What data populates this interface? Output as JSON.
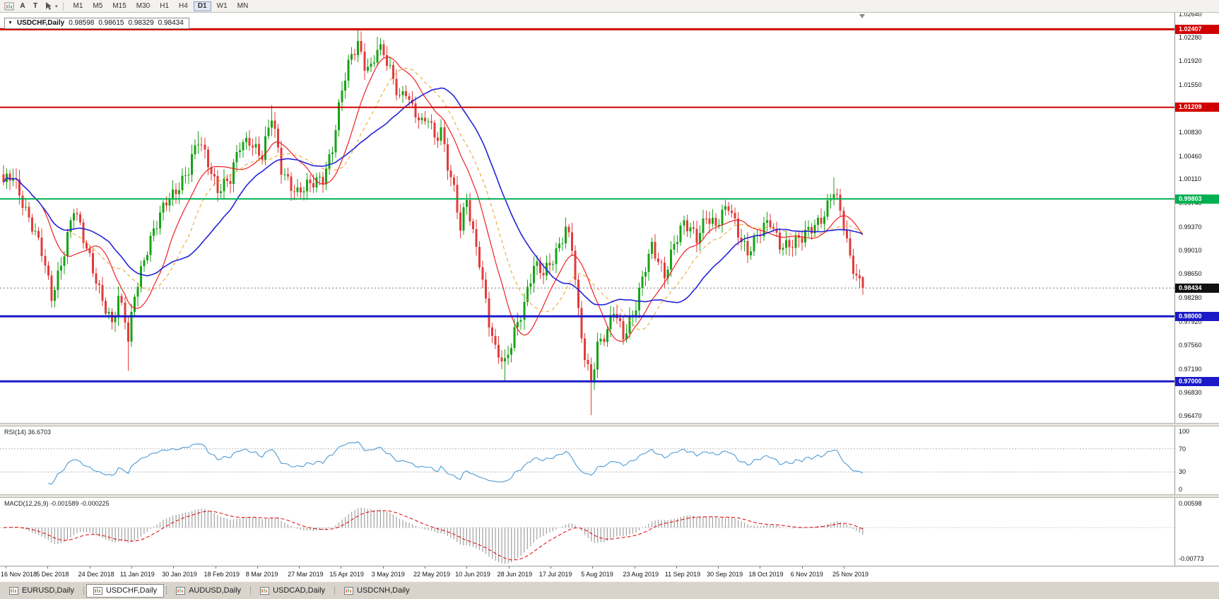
{
  "toolbar": {
    "tool_a": "A",
    "tool_t": "T",
    "timeframes": [
      {
        "label": "M1",
        "active": false
      },
      {
        "label": "M5",
        "active": false
      },
      {
        "label": "M15",
        "active": false
      },
      {
        "label": "M30",
        "active": false
      },
      {
        "label": "H1",
        "active": false
      },
      {
        "label": "H4",
        "active": false
      },
      {
        "label": "D1",
        "active": true
      },
      {
        "label": "W1",
        "active": false
      },
      {
        "label": "MN",
        "active": false
      }
    ]
  },
  "chart": {
    "title": {
      "symbol": "USDCHF,Daily",
      "open": "0.98598",
      "high": "0.98615",
      "low": "0.98329",
      "close": "0.98434"
    }
  },
  "chart_data": {
    "type": "candlestick",
    "symbol": "USDCHF",
    "period": "Daily",
    "num_candles": 270,
    "last_candle": {
      "open": 0.98598,
      "high": 0.98615,
      "low": 0.98329,
      "close": 0.98434
    },
    "price_axis_labels": [
      "1.02640",
      "1.02280",
      "1.01920",
      "1.01550",
      "1.01190",
      "1.00830",
      "1.00460",
      "1.00110",
      "0.99740",
      "0.99370",
      "0.99010",
      "0.98650",
      "0.98280",
      "0.97920",
      "0.97560",
      "0.97190",
      "0.96830",
      "0.96470"
    ],
    "price_axis_range": [
      0.9647,
      1.0264
    ],
    "x_date_labels": [
      "16 Nov 2018",
      "5 Dec 2018",
      "24 Dec 2018",
      "11 Jan 2019",
      "30 Jan 2019",
      "18 Feb 2019",
      "8 Mar 2019",
      "27 Mar 2019",
      "15 Apr 2019",
      "3 May 2019",
      "22 May 2019",
      "10 Jun 2019",
      "28 Jun 2019",
      "17 Jul 2019",
      "5 Aug 2019",
      "23 Aug 2019",
      "11 Sep 2019",
      "30 Sep 2019",
      "18 Oct 2019",
      "6 Nov 2019",
      "25 Nov 2019"
    ],
    "anchors": [
      [
        0,
        1.0
      ],
      [
        3,
        1.0015
      ],
      [
        6,
        0.998
      ],
      [
        9,
        0.994
      ],
      [
        12,
        0.9895
      ],
      [
        15,
        0.9828
      ],
      [
        18,
        0.9885
      ],
      [
        20,
        0.9926
      ],
      [
        22,
        0.9965
      ],
      [
        25,
        0.9915
      ],
      [
        29,
        0.986
      ],
      [
        32,
        0.9815
      ],
      [
        34,
        0.9785
      ],
      [
        36,
        0.9822
      ],
      [
        38,
        0.9795
      ],
      [
        39,
        0.9762
      ],
      [
        41,
        0.984
      ],
      [
        44,
        0.989
      ],
      [
        48,
        0.9938
      ],
      [
        51,
        0.9978
      ],
      [
        54,
        0.9998
      ],
      [
        58,
        1.0022
      ],
      [
        61,
        1.0068
      ],
      [
        64,
        1.004
      ],
      [
        67,
        0.9998
      ],
      [
        71,
        1.0006
      ],
      [
        74,
        1.0062
      ],
      [
        77,
        1.0075
      ],
      [
        81,
        1.0045
      ],
      [
        84,
        1.0103
      ],
      [
        87,
        1.0028
      ],
      [
        90,
        1.0005
      ],
      [
        92,
        0.999
      ],
      [
        96,
        0.9998
      ],
      [
        100,
        1.0016
      ],
      [
        103,
        1.0062
      ],
      [
        106,
        1.0145
      ],
      [
        109,
        1.0198
      ],
      [
        111,
        1.022
      ],
      [
        113,
        1.0192
      ],
      [
        115,
        1.0183
      ],
      [
        117,
        1.021
      ],
      [
        119,
        1.0198
      ],
      [
        121,
        1.0175
      ],
      [
        124,
        1.014
      ],
      [
        126,
        1.0152
      ],
      [
        128,
        1.0118
      ],
      [
        131,
        1.009
      ],
      [
        133,
        1.0104
      ],
      [
        135,
        1.0076
      ],
      [
        137,
        1.0092
      ],
      [
        139,
        1.0035
      ],
      [
        141,
        0.999
      ],
      [
        143,
        0.993
      ],
      [
        145,
        0.9978
      ],
      [
        147,
        0.993
      ],
      [
        149,
        0.989
      ],
      [
        152,
        0.979
      ],
      [
        154,
        0.9742
      ],
      [
        157,
        0.9725
      ],
      [
        160,
        0.9782
      ],
      [
        163,
        0.982
      ],
      [
        166,
        0.9872
      ],
      [
        169,
        0.9866
      ],
      [
        173,
        0.9903
      ],
      [
        176,
        0.9932
      ],
      [
        178,
        0.9903
      ],
      [
        180,
        0.98
      ],
      [
        182,
        0.974
      ],
      [
        184,
        0.9705
      ],
      [
        186,
        0.9758
      ],
      [
        189,
        0.9772
      ],
      [
        191,
        0.9806
      ],
      [
        194,
        0.9772
      ],
      [
        198,
        0.982
      ],
      [
        201,
        0.9872
      ],
      [
        203,
        0.9902
      ],
      [
        207,
        0.9868
      ],
      [
        210,
        0.9914
      ],
      [
        213,
        0.9938
      ],
      [
        217,
        0.992
      ],
      [
        220,
        0.996
      ],
      [
        223,
        0.9938
      ],
      [
        227,
        0.9966
      ],
      [
        230,
        0.9932
      ],
      [
        233,
        0.9902
      ],
      [
        237,
        0.9926
      ],
      [
        240,
        0.9944
      ],
      [
        243,
        0.9915
      ],
      [
        247,
        0.991
      ],
      [
        250,
        0.9916
      ],
      [
        253,
        0.9938
      ],
      [
        257,
        0.996
      ],
      [
        260,
        0.999
      ],
      [
        263,
        0.9938
      ],
      [
        265,
        0.989
      ],
      [
        267,
        0.9868
      ],
      [
        269,
        0.98434
      ]
    ],
    "spikes": [
      {
        "i": 39,
        "low": 0.9716
      },
      {
        "i": 61,
        "high": 1.0084
      },
      {
        "i": 84,
        "high": 1.0124
      },
      {
        "i": 111,
        "high": 1.0241
      },
      {
        "i": 117,
        "high": 1.0229
      },
      {
        "i": 157,
        "low": 0.97
      },
      {
        "i": 184,
        "low": 0.9648
      },
      {
        "i": 260,
        "high": 1.0013
      }
    ],
    "candle_colors": {
      "up": "#17a317",
      "down": "#e23b3b"
    },
    "moving_averages": [
      {
        "period": 13,
        "color": "#ee2222",
        "style": "solid",
        "width": 1.2
      },
      {
        "period": 21,
        "color": "#e8a11f",
        "style": "dashed",
        "width": 1
      },
      {
        "period": 34,
        "color": "#2424d8",
        "style": "solid",
        "width": 1.6
      }
    ],
    "levels": [
      {
        "value": 1.02407,
        "label": "1.02407",
        "color": "#d10000",
        "width": 3
      },
      {
        "value": 1.01209,
        "label": "1.01209",
        "color": "#d10000",
        "width": 2
      },
      {
        "value": 0.99803,
        "label": "0.99803",
        "color": "#00b050",
        "width": 2
      },
      {
        "value": 0.98,
        "label": "0.98000",
        "color": "#1a1ac8",
        "width": 3
      },
      {
        "value": 0.97,
        "label": "0.97000",
        "color": "#1a1ac8",
        "width": 3
      }
    ],
    "current": {
      "value": 0.98434,
      "label": "0.98434",
      "badge_color": "#111111"
    },
    "indicators": {
      "rsi": {
        "label": "RSI(14) 36.6703",
        "period": 14,
        "current": 36.6703,
        "levels": [
          70,
          30
        ],
        "axis": [
          "100",
          "70",
          "30",
          "0"
        ],
        "color": "#4f9bd5"
      },
      "macd": {
        "label": "MACD(12,26,9) -0.001589 -0.000225",
        "fast": 12,
        "slow": 26,
        "signal": 9,
        "macd_value": -0.001589,
        "signal_value": -0.000225,
        "axis": [
          "0.00598",
          "-0.00773"
        ],
        "hist_color": "#a0a0a0",
        "signal_color": "#e00000"
      }
    }
  },
  "tabs": {
    "items": [
      {
        "label": "EURUSD,Daily",
        "active": false
      },
      {
        "label": "USDCHF,Daily",
        "active": true
      },
      {
        "label": "AUDUSD,Daily",
        "active": false
      },
      {
        "label": "USDCAD,Daily",
        "active": false
      },
      {
        "label": "USDCNH,Daily",
        "active": false
      }
    ]
  }
}
